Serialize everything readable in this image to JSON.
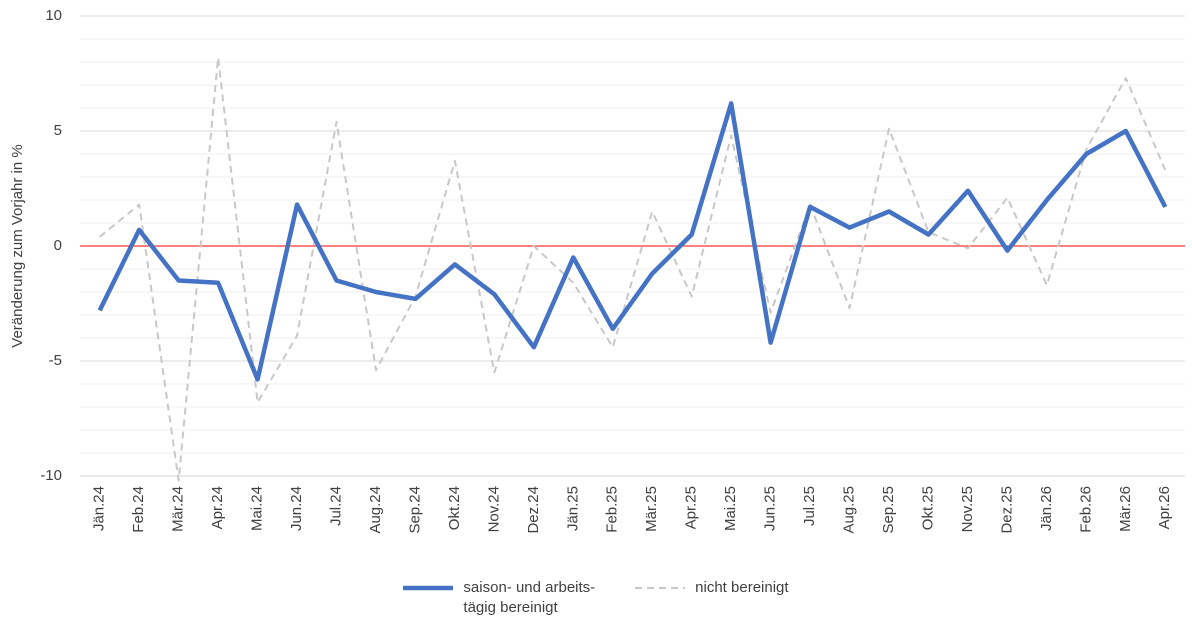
{
  "chart_data": {
    "type": "line",
    "y_label": "Veränderung zum Vorjahr in %",
    "categories": [
      "Jän.24",
      "Feb.24",
      "Mär.24",
      "Apr.24",
      "Mai.24",
      "Jun.24",
      "Jul.24",
      "Aug.24",
      "Sep.24",
      "Okt.24",
      "Nov.24",
      "Dez.24",
      "Jän.25",
      "Feb.25",
      "Mär.25",
      "Apr.25",
      "Mai.25",
      "Jun.25",
      "Jul.25",
      "Aug.25",
      "Sep.25",
      "Okt.25",
      "Nov.25",
      "Dez.25",
      "Jän.26",
      "Feb.26",
      "Mär.26",
      "Apr.26"
    ],
    "series": [
      {
        "name": "saison- und arbeits-\ntägig bereinigt",
        "color": "#4472c4",
        "dash": false,
        "values": [
          -2.8,
          0.7,
          -1.5,
          -1.6,
          -5.8,
          1.8,
          -1.5,
          -2.0,
          -2.3,
          -0.8,
          -2.1,
          -4.4,
          -0.5,
          -3.6,
          -1.2,
          0.5,
          6.2,
          -4.2,
          1.7,
          0.8,
          1.5,
          0.5,
          2.4,
          -0.2,
          2.0,
          4.0,
          5.0,
          1.7
        ]
      },
      {
        "name": "nicht bereinigt",
        "color": "#c8c8c8",
        "dash": true,
        "values": [
          0.4,
          1.8,
          -10.2,
          8.2,
          -6.8,
          -3.9,
          5.4,
          -5.4,
          -2.2,
          3.7,
          -5.5,
          0.0,
          -1.6,
          -4.4,
          1.5,
          -2.2,
          4.8,
          -2.9,
          1.8,
          -2.7,
          5.1,
          0.6,
          -0.1,
          2.1,
          -1.7,
          4.2,
          7.3,
          3.3
        ]
      }
    ],
    "ylim": [
      -10,
      10
    ],
    "yticks": [
      -10,
      -5,
      0,
      5,
      10
    ],
    "yminorticks": [
      -9,
      -8,
      -7,
      -6,
      -4,
      -3,
      -2,
      -1,
      1,
      2,
      3,
      4,
      6,
      7,
      8,
      9
    ],
    "grid": true,
    "zero_line_color": "#ff0000",
    "legend": "bottom"
  }
}
